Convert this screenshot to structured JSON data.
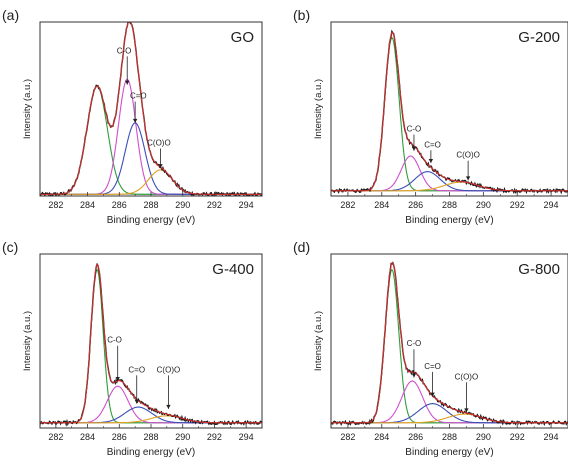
{
  "colors": {
    "raw": "#1a1a1a",
    "fit": "#d32f2f",
    "background": "#9e9e9e",
    "cc": "#2e9e3a",
    "co": "#d04fd0",
    "c_eq_o": "#3a4fb8",
    "coo": "#e0a020"
  },
  "chart_data": [
    {
      "type": "line",
      "panel": "(a)",
      "title": "GO",
      "xlabel": "Binding energy (eV)",
      "ylabel": "Intensity (a.u.)",
      "xlim": [
        281,
        295
      ],
      "ylim": [
        0,
        1
      ],
      "xticks": [
        282,
        284,
        286,
        288,
        290,
        292,
        294
      ],
      "xtick_labels": [
        "282",
        "284",
        "286",
        "288",
        "290",
        "292",
        "294"
      ],
      "components": [
        {
          "center": 284.6,
          "height": 0.62,
          "width": 0.65,
          "color_key": "cc"
        },
        {
          "center": 286.5,
          "height": 0.66,
          "width": 0.55,
          "color_key": "co"
        },
        {
          "center": 287.0,
          "height": 0.41,
          "width": 0.62,
          "color_key": "c_eq_o"
        },
        {
          "center": 288.6,
          "height": 0.14,
          "width": 0.75,
          "color_key": "coo"
        }
      ],
      "baseline": 0.01,
      "annotations": [
        {
          "text": "C-O",
          "x": 286.3,
          "y": 0.82,
          "arrow_to": [
            286.5,
            0.64
          ]
        },
        {
          "text": "C=O",
          "x": 287.2,
          "y": 0.56,
          "arrow_to": [
            287.0,
            0.42
          ]
        },
        {
          "text": "C(O)O",
          "x": 288.5,
          "y": 0.29,
          "arrow_to": [
            288.6,
            0.16
          ]
        }
      ]
    },
    {
      "type": "line",
      "panel": "(b)",
      "title": "G-200",
      "xlabel": "Binding energy (eV)",
      "ylabel": "Intensity (a.u.)",
      "xlim": [
        281,
        295
      ],
      "ylim": [
        0,
        1
      ],
      "xticks": [
        282,
        284,
        286,
        288,
        290,
        292,
        294
      ],
      "xtick_labels": [
        "282",
        "284",
        "286",
        "288",
        "290",
        "292",
        "294"
      ],
      "components": [
        {
          "center": 284.6,
          "height": 0.88,
          "width": 0.42,
          "color_key": "cc"
        },
        {
          "center": 285.7,
          "height": 0.2,
          "width": 0.55,
          "color_key": "co"
        },
        {
          "center": 286.7,
          "height": 0.11,
          "width": 0.75,
          "color_key": "c_eq_o"
        },
        {
          "center": 288.7,
          "height": 0.05,
          "width": 1.0,
          "color_key": "coo"
        }
      ],
      "baseline": 0.03,
      "annotations": [
        {
          "text": "C-O",
          "x": 285.9,
          "y": 0.37,
          "arrow_to": [
            285.9,
            0.26
          ]
        },
        {
          "text": "C=O",
          "x": 287.0,
          "y": 0.28,
          "arrow_to": [
            286.9,
            0.19
          ]
        },
        {
          "text": "C(O)O",
          "x": 289.1,
          "y": 0.22,
          "arrow_to": [
            289.1,
            0.09
          ]
        }
      ]
    },
    {
      "type": "line",
      "panel": "(c)",
      "title": "G-400",
      "xlabel": "Binding energy (eV)",
      "ylabel": "Intensity (a.u.)",
      "xlim": [
        281,
        295
      ],
      "ylim": [
        0,
        1
      ],
      "xticks": [
        282,
        284,
        286,
        288,
        290,
        292,
        294
      ],
      "xtick_labels": [
        "282",
        "284",
        "286",
        "288",
        "290",
        "292",
        "294"
      ],
      "components": [
        {
          "center": 284.6,
          "height": 0.88,
          "width": 0.38,
          "color_key": "cc"
        },
        {
          "center": 285.9,
          "height": 0.21,
          "width": 0.65,
          "color_key": "co"
        },
        {
          "center": 287.2,
          "height": 0.09,
          "width": 0.85,
          "color_key": "c_eq_o"
        },
        {
          "center": 289.0,
          "height": 0.04,
          "width": 1.0,
          "color_key": "coo"
        }
      ],
      "baseline": 0.03,
      "annotations": [
        {
          "text": "C-O",
          "x": 285.7,
          "y": 0.49,
          "arrow_to": [
            285.9,
            0.27
          ]
        },
        {
          "text": "C=O",
          "x": 287.1,
          "y": 0.32,
          "arrow_to": [
            287.1,
            0.14
          ]
        },
        {
          "text": "C(O)O",
          "x": 289.1,
          "y": 0.32,
          "arrow_to": [
            289.1,
            0.11
          ]
        }
      ]
    },
    {
      "type": "line",
      "panel": "(d)",
      "title": "G-800",
      "xlabel": "Binding energy (eV)",
      "ylabel": "Intensity (a.u.)",
      "xlim": [
        281,
        295
      ],
      "ylim": [
        0,
        1
      ],
      "xticks": [
        282,
        284,
        286,
        288,
        290,
        292,
        294
      ],
      "xtick_labels": [
        "282",
        "284",
        "286",
        "288",
        "290",
        "292",
        "294"
      ],
      "components": [
        {
          "center": 284.6,
          "height": 0.88,
          "width": 0.4,
          "color_key": "cc"
        },
        {
          "center": 285.8,
          "height": 0.24,
          "width": 0.62,
          "color_key": "co"
        },
        {
          "center": 287.0,
          "height": 0.11,
          "width": 0.85,
          "color_key": "c_eq_o"
        },
        {
          "center": 288.9,
          "height": 0.05,
          "width": 1.0,
          "color_key": "coo"
        }
      ],
      "baseline": 0.03,
      "annotations": [
        {
          "text": "C-O",
          "x": 285.9,
          "y": 0.47,
          "arrow_to": [
            285.9,
            0.29
          ]
        },
        {
          "text": "C=O",
          "x": 287.0,
          "y": 0.34,
          "arrow_to": [
            287.0,
            0.18
          ]
        },
        {
          "text": "C(O)O",
          "x": 289.0,
          "y": 0.28,
          "arrow_to": [
            289.0,
            0.09
          ]
        }
      ]
    }
  ]
}
